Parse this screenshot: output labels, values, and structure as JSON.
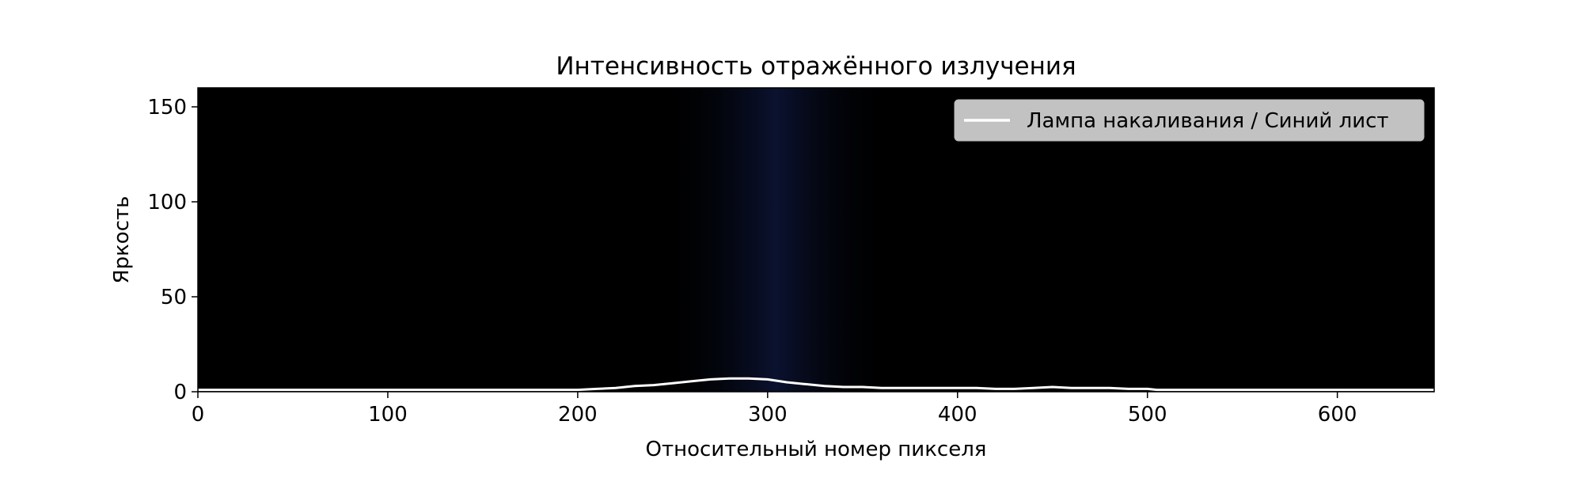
{
  "chart_data": {
    "type": "line",
    "title": "Интенсивность отражённого излучения",
    "xlabel": "Относительный номер пикселя",
    "ylabel": "Яркость",
    "xlim": [
      0,
      651
    ],
    "ylim": [
      0,
      160
    ],
    "x_ticks": [
      0,
      100,
      200,
      300,
      400,
      500,
      600
    ],
    "y_ticks": [
      0,
      50,
      100,
      150
    ],
    "grid": false,
    "legend_position": "top-right",
    "background": "spectrum image (black with faint blue glow around pixel 250–330)",
    "series": [
      {
        "name": "Лампа накаливания / Синий лист",
        "color": "#ffffff",
        "x": [
          0,
          100,
          190,
          200,
          210,
          220,
          230,
          240,
          250,
          260,
          270,
          280,
          290,
          300,
          310,
          320,
          330,
          340,
          350,
          360,
          370,
          380,
          390,
          400,
          410,
          420,
          430,
          440,
          450,
          460,
          470,
          480,
          490,
          500,
          505,
          510,
          600,
          651
        ],
        "values": [
          1,
          1,
          1,
          1,
          1.5,
          2,
          3,
          3.5,
          4.5,
          5.5,
          6.5,
          7,
          7,
          6.5,
          5,
          4,
          3,
          2.5,
          2.5,
          2,
          2,
          2,
          2,
          2,
          2,
          1.5,
          1.5,
          2,
          2.5,
          2,
          2,
          2,
          1.5,
          1.5,
          1,
          1,
          1,
          1
        ]
      }
    ]
  },
  "colors": {
    "plot_background": "#000000",
    "glow": "#0b1230",
    "line": "#ffffff",
    "legend_background": "#cccccc"
  }
}
